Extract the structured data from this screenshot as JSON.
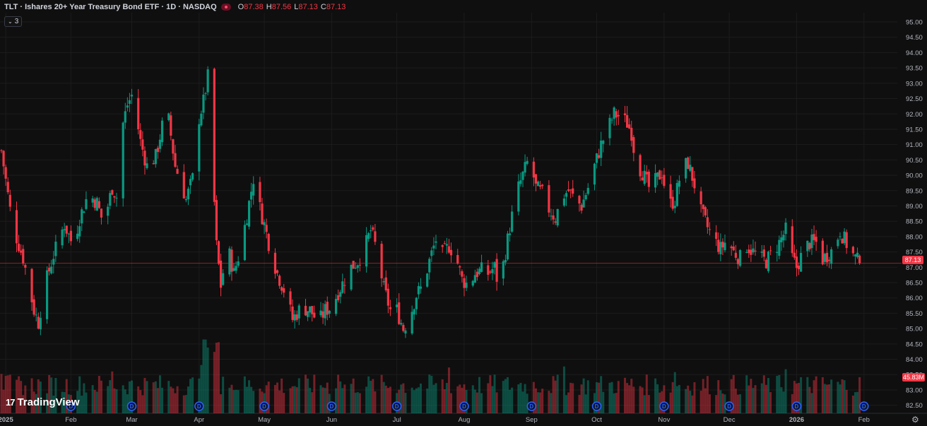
{
  "legend": {
    "symbol": "TLT · Ishares 20+ Year Treasury Bond ETF · 1D · NASDAQ",
    "o_label": "O",
    "o_value": "87.38",
    "h_label": "H",
    "h_value": "87.56",
    "l_label": "L",
    "l_value": "87.13",
    "c_label": "C",
    "c_value": "87.13"
  },
  "indicators_toggle": "3",
  "brand": "TradingView",
  "price_badge": "87.13",
  "volume_badge": "45.83M",
  "colors": {
    "up": "#089981",
    "down": "#f23645",
    "background": "#0f0f0f",
    "grid": "#1c1c1c"
  },
  "chart_data": {
    "type": "candlestick",
    "ylim": [
      82.4,
      95.3
    ],
    "y_ticks": [
      "95.00",
      "94.50",
      "94.00",
      "93.50",
      "93.00",
      "92.50",
      "92.00",
      "91.50",
      "91.00",
      "90.50",
      "90.00",
      "89.50",
      "89.00",
      "88.50",
      "88.00",
      "87.50",
      "87.00",
      "86.50",
      "86.00",
      "85.50",
      "85.00",
      "84.50",
      "84.00",
      "83.50",
      "83.00",
      "82.50"
    ],
    "x_ticks": [
      {
        "label": "2025",
        "day": 2
      },
      {
        "label": "Feb",
        "day": 32
      },
      {
        "label": "Mar",
        "day": 60
      },
      {
        "label": "Apr",
        "day": 91
      },
      {
        "label": "May",
        "day": 121
      },
      {
        "label": "Jun",
        "day": 152
      },
      {
        "label": "Jul",
        "day": 182
      },
      {
        "label": "Aug",
        "day": 213
      },
      {
        "label": "Sep",
        "day": 244
      },
      {
        "label": "Oct",
        "day": 274
      },
      {
        "label": "Nov",
        "day": 305
      },
      {
        "label": "Dec",
        "day": 335
      },
      {
        "label": "2026",
        "day": 366
      },
      {
        "label": "Feb",
        "day": 397
      }
    ],
    "dividend_marker_days": [
      32,
      60,
      91,
      121,
      152,
      182,
      213,
      244,
      274,
      305,
      335,
      366,
      397
    ],
    "last_price": 87.13,
    "anchors": [
      [
        0,
        90.8
      ],
      [
        5,
        88.4
      ],
      [
        10,
        87.3
      ],
      [
        15,
        85.6
      ],
      [
        17,
        85.2
      ],
      [
        20,
        86.4
      ],
      [
        24,
        87.4
      ],
      [
        29,
        88.4
      ],
      [
        33,
        87.7
      ],
      [
        36,
        88.6
      ],
      [
        40,
        89.4
      ],
      [
        44,
        89.1
      ],
      [
        47,
        88.4
      ],
      [
        51,
        89.6
      ],
      [
        53,
        89.3
      ],
      [
        55,
        91.4
      ],
      [
        58,
        92.3
      ],
      [
        60,
        92.6
      ],
      [
        61,
        92.4
      ],
      [
        64,
        91.1
      ],
      [
        67,
        90.3
      ],
      [
        71,
        90.6
      ],
      [
        74,
        91.6
      ],
      [
        77,
        91.8
      ],
      [
        80,
        90.3
      ],
      [
        83,
        89.7
      ],
      [
        85,
        89.2
      ],
      [
        88,
        89.9
      ],
      [
        90,
        91.6
      ],
      [
        93,
        92.4
      ],
      [
        95,
        93.2
      ],
      [
        97,
        90.5
      ],
      [
        99,
        87.7
      ],
      [
        101,
        86.4
      ],
      [
        104,
        87.7
      ],
      [
        107,
        86.8
      ],
      [
        110,
        87.6
      ],
      [
        113,
        88.7
      ],
      [
        116,
        89.9
      ],
      [
        118,
        89.2
      ],
      [
        121,
        88.4
      ],
      [
        124,
        87.5
      ],
      [
        127,
        86.8
      ],
      [
        131,
        86.1
      ],
      [
        134,
        85.3
      ],
      [
        138,
        85.7
      ],
      [
        142,
        85.6
      ],
      [
        146,
        85.2
      ],
      [
        149,
        85.6
      ],
      [
        152,
        85.7
      ],
      [
        155,
        86.2
      ],
      [
        158,
        86.6
      ],
      [
        161,
        87.0
      ],
      [
        164,
        87.2
      ],
      [
        167,
        87.6
      ],
      [
        170,
        88.2
      ],
      [
        173,
        87.5
      ],
      [
        176,
        86.3
      ],
      [
        179,
        85.6
      ],
      [
        182,
        85.6
      ],
      [
        185,
        85.0
      ],
      [
        188,
        85.4
      ],
      [
        191,
        86.1
      ],
      [
        194,
        86.4
      ],
      [
        197,
        87.2
      ],
      [
        200,
        87.9
      ],
      [
        203,
        87.4
      ],
      [
        206,
        87.7
      ],
      [
        209,
        87.4
      ],
      [
        212,
        86.6
      ],
      [
        215,
        86.4
      ],
      [
        218,
        86.8
      ],
      [
        221,
        86.9
      ],
      [
        224,
        86.8
      ],
      [
        227,
        87.0
      ],
      [
        229,
        86.3
      ],
      [
        231,
        87.1
      ],
      [
        234,
        88.3
      ],
      [
        237,
        89.4
      ],
      [
        240,
        90.0
      ],
      [
        243,
        90.6
      ],
      [
        246,
        89.6
      ],
      [
        249,
        89.4
      ],
      [
        252,
        88.9
      ],
      [
        255,
        88.6
      ],
      [
        258,
        89.3
      ],
      [
        261,
        89.5
      ],
      [
        264,
        89.2
      ],
      [
        267,
        89.0
      ],
      [
        270,
        89.6
      ],
      [
        273,
        90.3
      ],
      [
        276,
        91.0
      ],
      [
        279,
        91.5
      ],
      [
        282,
        92.0
      ],
      [
        285,
        91.9
      ],
      [
        288,
        91.7
      ],
      [
        290,
        91.4
      ],
      [
        292,
        90.4
      ],
      [
        295,
        90.1
      ],
      [
        298,
        89.6
      ],
      [
        301,
        89.8
      ],
      [
        304,
        90.1
      ],
      [
        307,
        89.0
      ],
      [
        310,
        89.2
      ],
      [
        313,
        90.2
      ],
      [
        316,
        90.4
      ],
      [
        319,
        89.7
      ],
      [
        322,
        88.8
      ],
      [
        325,
        88.3
      ],
      [
        328,
        87.9
      ],
      [
        331,
        87.6
      ],
      [
        334,
        87.9
      ],
      [
        337,
        87.5
      ],
      [
        340,
        87.3
      ],
      [
        343,
        87.7
      ],
      [
        346,
        87.5
      ],
      [
        349,
        87.3
      ],
      [
        352,
        87.2
      ],
      [
        355,
        87.5
      ],
      [
        358,
        87.8
      ],
      [
        361,
        88.2
      ],
      [
        364,
        87.3
      ],
      [
        366,
        87.0
      ],
      [
        369,
        87.5
      ],
      [
        372,
        87.8
      ],
      [
        375,
        87.8
      ],
      [
        377,
        87.2
      ],
      [
        380,
        87.4
      ],
      [
        383,
        87.6
      ],
      [
        386,
        88.2
      ],
      [
        388,
        87.9
      ],
      [
        391,
        87.5
      ],
      [
        393,
        87.3
      ],
      [
        395,
        87.13
      ]
    ]
  }
}
